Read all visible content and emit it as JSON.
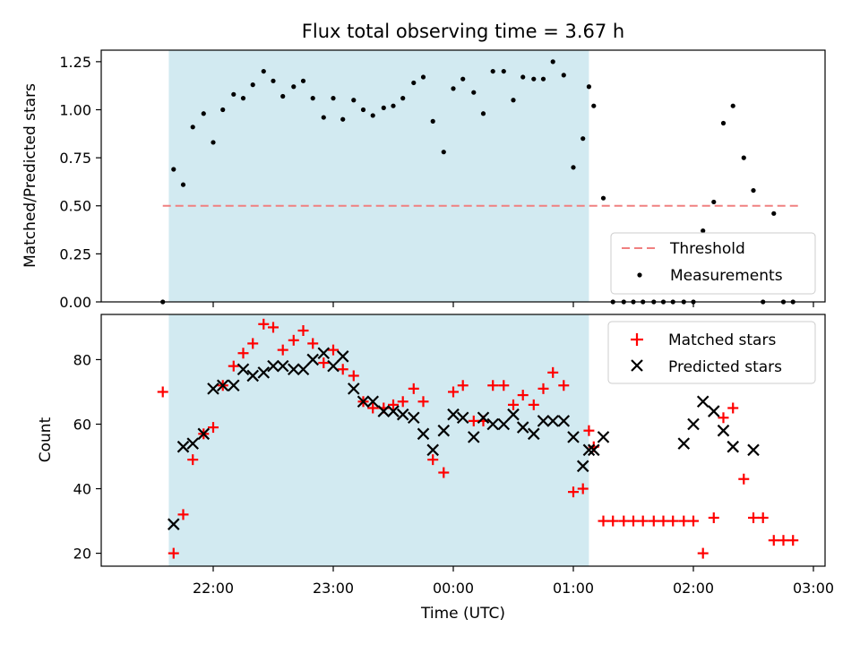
{
  "chart_data": [
    {
      "type": "scatter",
      "title": "Flux total observing time = 3.67 h",
      "xlabel": "",
      "ylabel": "Matched/Predicted stars",
      "ylim": [
        0,
        1.31
      ],
      "yticks": [
        "0.00",
        "0.25",
        "0.50",
        "0.75",
        "1.00",
        "1.25"
      ],
      "shaded_x": [
        21.63,
        1.13
      ],
      "threshold": {
        "name": "Threshold",
        "value": 0.5,
        "color": "#f08080",
        "x": [
          21.58,
          2.88
        ]
      },
      "legend": {
        "placement": "lower-right",
        "entries": [
          "Threshold",
          "Measurements"
        ]
      },
      "series": [
        {
          "name": "Measurements",
          "color": "#000000",
          "x": [
            21.58,
            21.67,
            21.75,
            21.83,
            21.92,
            22.0,
            22.08,
            22.17,
            22.25,
            22.33,
            22.42,
            22.5,
            22.58,
            22.67,
            22.75,
            22.83,
            22.92,
            23.0,
            23.08,
            23.17,
            23.25,
            23.33,
            23.42,
            23.5,
            23.58,
            23.67,
            23.75,
            23.83,
            23.92,
            24.0,
            24.08,
            24.17,
            24.25,
            24.33,
            24.42,
            24.5,
            24.58,
            24.67,
            24.75,
            24.83,
            24.92,
            25.0,
            25.08,
            25.13,
            25.17,
            25.25,
            25.33,
            25.42,
            25.5,
            25.58,
            25.67,
            25.75,
            25.83,
            25.92,
            26.0,
            26.08,
            26.17,
            26.25,
            26.33,
            26.42,
            26.5,
            26.58,
            26.67,
            26.75,
            26.83
          ],
          "y": [
            0.0,
            0.69,
            0.61,
            0.91,
            0.98,
            0.83,
            1.0,
            1.08,
            1.06,
            1.13,
            1.2,
            1.15,
            1.07,
            1.12,
            1.15,
            1.06,
            0.96,
            1.06,
            0.95,
            1.05,
            1.0,
            0.97,
            1.01,
            1.02,
            1.06,
            1.14,
            1.17,
            0.94,
            0.78,
            1.11,
            1.16,
            1.09,
            0.98,
            1.2,
            1.2,
            1.05,
            1.17,
            1.16,
            1.16,
            1.25,
            1.18,
            0.7,
            0.85,
            1.12,
            1.02,
            0.54,
            0.0,
            0.0,
            0.0,
            0.0,
            0.0,
            0.0,
            0.0,
            0.0,
            0.0,
            0.37,
            0.52,
            0.93,
            1.02,
            0.75,
            0.58,
            0.0,
            0.46,
            0.0,
            0.0
          ]
        }
      ]
    },
    {
      "type": "scatter",
      "title": "",
      "xlabel": "Time (UTC)",
      "ylabel": "Count",
      "ylim": [
        16,
        94
      ],
      "yticks": [
        "20",
        "40",
        "60",
        "80"
      ],
      "xticks": [
        "22:00",
        "23:00",
        "00:00",
        "01:00",
        "02:00",
        "03:00"
      ],
      "shaded_x": [
        21.63,
        1.13
      ],
      "legend": {
        "placement": "upper-right",
        "entries": [
          "Matched stars",
          "Predicted stars"
        ]
      },
      "series": [
        {
          "name": "Matched stars",
          "marker": "plus",
          "color": "#ff0000",
          "x": [
            21.58,
            21.67,
            21.75,
            21.83,
            21.92,
            22.0,
            22.08,
            22.17,
            22.25,
            22.33,
            22.42,
            22.5,
            22.58,
            22.67,
            22.75,
            22.83,
            22.92,
            23.0,
            23.08,
            23.17,
            23.25,
            23.33,
            23.42,
            23.5,
            23.58,
            23.67,
            23.75,
            23.83,
            23.92,
            24.0,
            24.08,
            24.17,
            24.25,
            24.33,
            24.42,
            24.5,
            24.58,
            24.67,
            24.75,
            24.83,
            24.92,
            25.0,
            25.08,
            25.13,
            25.17,
            25.25,
            25.33,
            25.42,
            25.5,
            25.58,
            25.67,
            25.75,
            25.83,
            25.92,
            26.0,
            26.08,
            26.17,
            26.25,
            26.33,
            26.42,
            26.5,
            26.58,
            26.67,
            26.75,
            26.83
          ],
          "y": [
            70,
            20,
            32,
            49,
            57,
            59,
            72,
            78,
            82,
            85,
            91,
            90,
            83,
            86,
            89,
            85,
            79,
            83,
            77,
            75,
            67,
            65,
            65,
            66,
            67,
            71,
            67,
            49,
            45,
            70,
            72,
            61,
            61,
            72,
            72,
            66,
            69,
            66,
            71,
            76,
            72,
            39,
            40,
            58,
            53,
            30,
            30,
            30,
            30,
            30,
            30,
            30,
            30,
            30,
            30,
            20,
            31,
            62,
            65,
            43,
            31,
            31,
            24,
            24,
            24
          ]
        },
        {
          "name": "Predicted stars",
          "marker": "cross",
          "color": "#000000",
          "x": [
            21.67,
            21.75,
            21.83,
            21.92,
            22.0,
            22.08,
            22.17,
            22.25,
            22.33,
            22.42,
            22.5,
            22.58,
            22.67,
            22.75,
            22.83,
            22.92,
            23.0,
            23.08,
            23.17,
            23.25,
            23.33,
            23.42,
            23.5,
            23.58,
            23.67,
            23.75,
            23.83,
            23.92,
            24.0,
            24.08,
            24.17,
            24.25,
            24.33,
            24.42,
            24.5,
            24.58,
            24.67,
            24.75,
            24.83,
            24.92,
            25.0,
            25.08,
            25.13,
            25.17,
            25.25,
            25.92,
            26.0,
            26.08,
            26.17,
            26.25,
            26.33,
            26.5
          ],
          "y": [
            29,
            53,
            54,
            57,
            71,
            72,
            72,
            77,
            75,
            76,
            78,
            78,
            77,
            77,
            80,
            82,
            78,
            81,
            71,
            67,
            67,
            64,
            64,
            63,
            62,
            57,
            52,
            58,
            63,
            62,
            56,
            62,
            60,
            60,
            63,
            59,
            57,
            61,
            61,
            61,
            56,
            47,
            52,
            52,
            56,
            54,
            60,
            67,
            64,
            58,
            53,
            52
          ]
        }
      ]
    }
  ]
}
